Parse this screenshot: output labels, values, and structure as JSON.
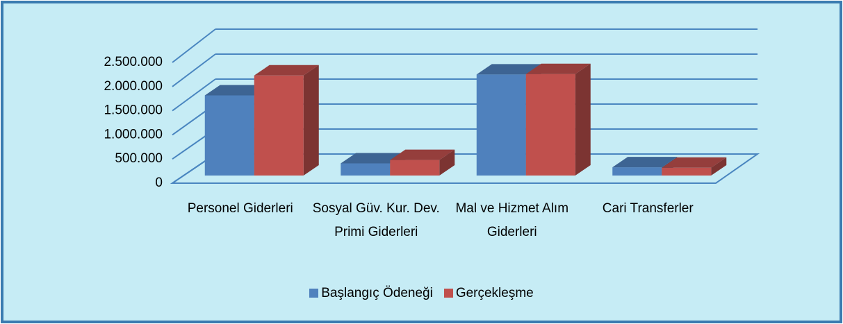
{
  "chart_data": {
    "type": "bar3d",
    "categories": [
      "Personel Giderleri",
      "Sosyal Güv. Kur. Dev. Primi Giderleri",
      "Mal ve Hizmet Alım Giderleri",
      "Cari Transferler"
    ],
    "series": [
      {
        "name": "Başlangıç Ödeneği",
        "color": "#4f81bd",
        "values": [
          1650000,
          250000,
          2080000,
          170000
        ]
      },
      {
        "name": "Gerçekleşme",
        "color": "#c0504d",
        "values": [
          2060000,
          320000,
          2090000,
          160000
        ]
      }
    ],
    "ylim": [
      0,
      2500000
    ],
    "yticks": [
      0,
      {
        "value": 500000,
        "label": "500.000"
      },
      {
        "value": 1000000,
        "label": "1.000.000"
      },
      {
        "value": 1500000,
        "label": "1.500.000"
      },
      {
        "value": 2000000,
        "label": "2.000.000"
      },
      {
        "value": 2500000,
        "label": "2.500.000"
      }
    ],
    "grid": true,
    "legend": "bottom"
  }
}
